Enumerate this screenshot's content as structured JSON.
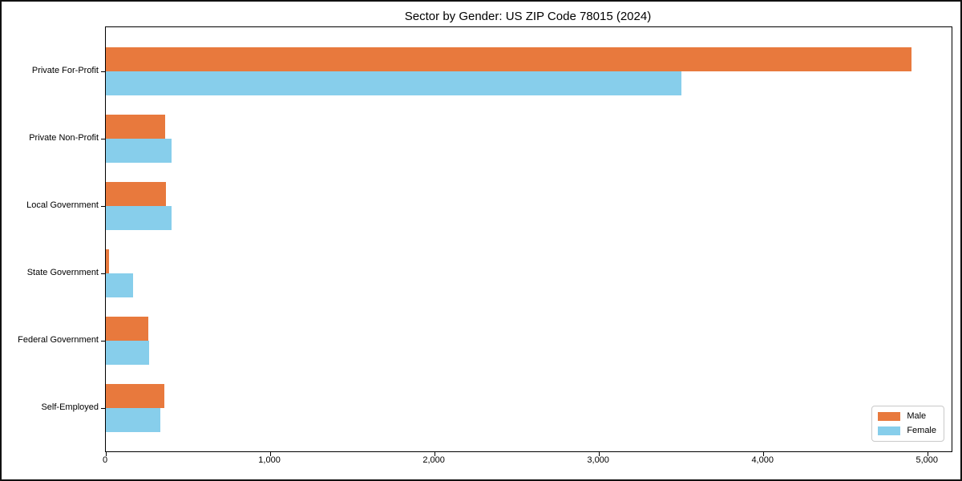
{
  "title": "Sector by Gender: US ZIP Code 78015 (2024)",
  "chart_data": {
    "type": "bar",
    "orientation": "horizontal",
    "title": "Sector by Gender: US ZIP Code 78015 (2024)",
    "xlabel": "",
    "ylabel": "",
    "grid": false,
    "categories": [
      "Private For-Profit",
      "Private Non-Profit",
      "Local Government",
      "State Government",
      "Federal Government",
      "Self-Employed"
    ],
    "series": [
      {
        "name": "Male",
        "color": "#E8793D",
        "values": [
          4900,
          360,
          365,
          18,
          260,
          355
        ]
      },
      {
        "name": "Female",
        "color": "#87CEEB",
        "values": [
          3500,
          400,
          400,
          167,
          265,
          330
        ]
      }
    ],
    "xlim": [
      0,
      5145
    ],
    "x_ticks": [
      0,
      1000,
      2000,
      3000,
      4000,
      5000
    ],
    "x_tick_labels": [
      "0",
      "1,000",
      "2,000",
      "3,000",
      "4,000",
      "5,000"
    ],
    "legend": {
      "position": "lower right",
      "entries": [
        "Male",
        "Female"
      ]
    }
  },
  "colors": {
    "male": "#E8793D",
    "female": "#87CEEB",
    "axis": "#000000",
    "legend_border": "#c9c9c9",
    "background": "#ffffff"
  }
}
